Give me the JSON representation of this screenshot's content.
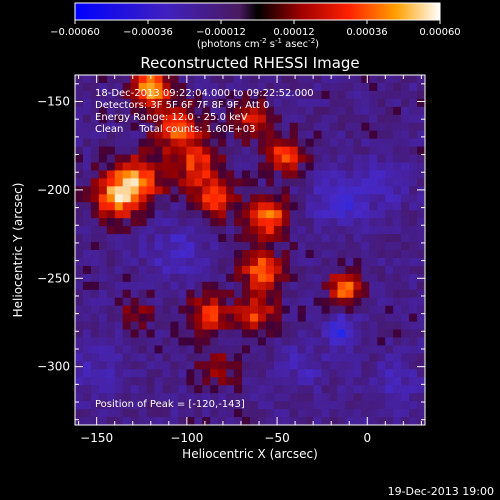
{
  "colorbar": {
    "ticks": [
      "-0.00060",
      "-0.00036",
      "-0.00012",
      "0.00012",
      "0.00036",
      "0.00060"
    ],
    "units": "(photons cm",
    "units_sup1": "-2",
    "units_mid": " s",
    "units_sup2": "-1",
    "units_end": " asec",
    "units_sup3": "-2",
    "units_close": ")"
  },
  "chart_data": {
    "type": "heatmap",
    "title": "Reconstructed RHESSI Image",
    "xlabel": "Heliocentric X (arcsec)",
    "ylabel": "Heliocentric Y (arcsec)",
    "xlim": [
      -162,
      32
    ],
    "ylim": [
      -333,
      -135
    ],
    "xticks": [
      -150,
      -100,
      -50,
      0
    ],
    "yticks": [
      -150,
      -200,
      -250,
      -300
    ],
    "xtick_labels": [
      "−150",
      "−100",
      "−50",
      "0"
    ],
    "ytick_labels": [
      "−150",
      "−200",
      "−250",
      "−300"
    ],
    "color_range": [
      -0.0006,
      0.0006
    ],
    "blobs": [
      {
        "x": -120,
        "y": -143,
        "strength": 0.0006,
        "spread": 7
      },
      {
        "x": -128,
        "y": -195,
        "strength": 0.00048,
        "spread": 10
      },
      {
        "x": -140,
        "y": -205,
        "strength": 0.0004,
        "spread": 9
      },
      {
        "x": -105,
        "y": -165,
        "strength": 0.0004,
        "spread": 9
      },
      {
        "x": -95,
        "y": -185,
        "strength": 0.00036,
        "spread": 9
      },
      {
        "x": -85,
        "y": -205,
        "strength": 0.0004,
        "spread": 8
      },
      {
        "x": -65,
        "y": -160,
        "strength": 0.0003,
        "spread": 8
      },
      {
        "x": -45,
        "y": -180,
        "strength": 0.00042,
        "spread": 7
      },
      {
        "x": -55,
        "y": -215,
        "strength": 0.00048,
        "spread": 8
      },
      {
        "x": -58,
        "y": -245,
        "strength": 0.00044,
        "spread": 8
      },
      {
        "x": -62,
        "y": -270,
        "strength": 0.00036,
        "spread": 8
      },
      {
        "x": -88,
        "y": -270,
        "strength": 0.00036,
        "spread": 8
      },
      {
        "x": -82,
        "y": -300,
        "strength": 0.0002,
        "spread": 8
      },
      {
        "x": -12,
        "y": -255,
        "strength": 0.00052,
        "spread": 6
      },
      {
        "x": -128,
        "y": -270,
        "strength": 0.0002,
        "spread": 7
      },
      {
        "x": -15,
        "y": -205,
        "strength": -0.0003,
        "spread": 10
      },
      {
        "x": 10,
        "y": -195,
        "strength": -0.00018,
        "spread": 9
      },
      {
        "x": -105,
        "y": -235,
        "strength": -0.0002,
        "spread": 11
      },
      {
        "x": -15,
        "y": -280,
        "strength": -0.00035,
        "spread": 6
      },
      {
        "x": -35,
        "y": -300,
        "strength": -0.00015,
        "spread": 9
      },
      {
        "x": -150,
        "y": -300,
        "strength": -0.00012,
        "spread": 12
      },
      {
        "x": 15,
        "y": -310,
        "strength": -0.00015,
        "spread": 10
      }
    ],
    "annotations": {
      "time": "18-Dec-2013 09:22:04.000 to 09:22:52.000",
      "detectors": "Detectors: 3F 5F 6F 7F 8F 9F, Att 0",
      "energy": "Energy Range: 12.0 - 25.0 keV",
      "clean": "Clean     Total counts: 1.60E+03",
      "peak": "Position of Peak = [-120,-143]"
    }
  },
  "timestamp": "19-Dec-2013 19:00"
}
